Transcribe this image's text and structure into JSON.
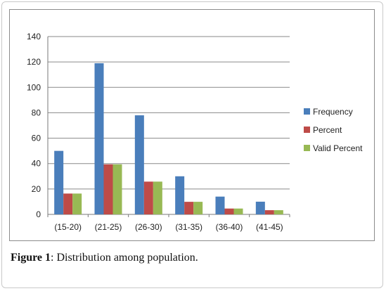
{
  "caption": {
    "label": "Figure 1",
    "text": ": Distribution among population."
  },
  "chart_data": {
    "type": "bar",
    "categories": [
      "(15-20)",
      "(21-25)",
      "(26-30)",
      "(31-35)",
      "(36-40)",
      "(41-45)"
    ],
    "series": [
      {
        "name": "Frequency",
        "color": "#4a7ebb",
        "values": [
          50,
          119,
          78,
          30,
          14,
          10
        ]
      },
      {
        "name": "Percent",
        "color": "#be4b48",
        "values": [
          16.4,
          39.4,
          25.8,
          9.9,
          4.6,
          3.3
        ]
      },
      {
        "name": "Valid Percent",
        "color": "#98b954",
        "values": [
          16.4,
          39.4,
          25.8,
          9.9,
          4.6,
          3.3
        ]
      }
    ],
    "ylim": [
      0,
      140
    ],
    "yticks": [
      0,
      20,
      40,
      60,
      80,
      100,
      120,
      140
    ],
    "grid": true,
    "legend": "right",
    "title": "",
    "xlabel": "",
    "ylabel": ""
  }
}
